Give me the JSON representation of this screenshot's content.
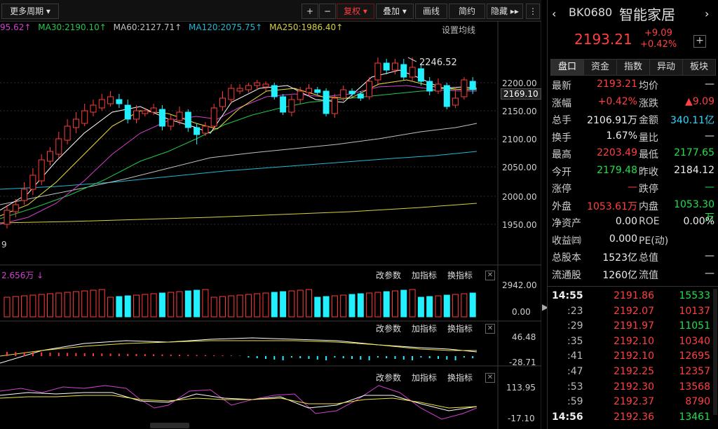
{
  "toolbar": {
    "period": "更多周期",
    "plus": "+",
    "minus": "−",
    "fuquan": "复权",
    "overlay": "叠加",
    "draw": "画线",
    "simple": "简约",
    "hide": "隐藏"
  },
  "ma": {
    "ma_first": "95.62",
    "ma30": "MA30:2190.10",
    "ma60": "MA60:2127.71",
    "ma120": "MA120:2075.75",
    "ma250": "MA250:1986.40",
    "settings": "设置均线"
  },
  "price_axis": [
    "2200.00",
    "2150.00",
    "2100.00",
    "2050.00",
    "2000.00",
    "1950.00"
  ],
  "current_price_tag": "2169.10",
  "high_annotation": "2246.52",
  "left_edge_label": "9",
  "volume": {
    "label": "2.656万",
    "params": "改参数",
    "add": "加指标",
    "swap": "换指标",
    "top": "2942.00",
    "bottom": "0.00"
  },
  "macd": {
    "params": "改参数",
    "add": "加指标",
    "swap": "换指标",
    "top": "46.48",
    "bottom": "-28.71"
  },
  "kdj": {
    "params": "改参数",
    "add": "加指标",
    "swap": "换指标",
    "top": "113.95",
    "bottom": "-17.10"
  },
  "quote": {
    "code": "BK0680",
    "name": "智能家居",
    "price": "2193.21",
    "change": "+9.09",
    "change_pct": "+0.42%"
  },
  "tabs": [
    "盘口",
    "资金",
    "指数",
    "异动",
    "板块"
  ],
  "stats": [
    {
      "k1": "最新",
      "v1": "2193.21",
      "c1": "red",
      "k2": "均价",
      "v2": "—",
      "c2": "white"
    },
    {
      "k1": "涨幅",
      "v1": "+0.42%",
      "c1": "red",
      "k2": "涨跌",
      "v2": "▲9.09",
      "c2": "red"
    },
    {
      "k1": "总手",
      "v1": "2106.91万",
      "c1": "white",
      "k2": "金额",
      "v2": "340.11亿",
      "c2": "cyan"
    },
    {
      "k1": "换手",
      "v1": "1.67%",
      "c1": "white",
      "k2": "量比",
      "v2": "—",
      "c2": "white"
    },
    {
      "k1": "最高",
      "v1": "2203.49",
      "c1": "red",
      "k2": "最低",
      "v2": "2177.65",
      "c2": "green"
    },
    {
      "k1": "今开",
      "v1": "2179.48",
      "c1": "green",
      "k2": "昨收",
      "v2": "2184.12",
      "c2": "white"
    },
    {
      "k1": "涨停",
      "v1": "—",
      "c1": "red",
      "k2": "跌停",
      "v2": "—",
      "c2": "green"
    },
    {
      "k1": "外盘",
      "v1": "1053.61万",
      "c1": "red",
      "k2": "内盘",
      "v2": "1053.30万",
      "c2": "green"
    },
    {
      "k1": "净资产",
      "v1": "0.00",
      "c1": "white",
      "k2": "ROE",
      "v2": "0.00%",
      "c2": "white"
    },
    {
      "k1": "收益㈣",
      "v1": "0.000",
      "c1": "white",
      "k2": "PE(动)",
      "v2": "",
      "c2": "white"
    },
    {
      "k1": "总股本",
      "v1": "1523亿",
      "c1": "white",
      "k2": "总值",
      "v2": "—",
      "c2": "white"
    },
    {
      "k1": "流通股",
      "v1": "1260亿",
      "c1": "white",
      "k2": "流值",
      "v2": "—",
      "c2": "white"
    }
  ],
  "ticks": [
    {
      "t": "14:55",
      "p": "2191.86",
      "v": "15533",
      "vc": "green"
    },
    {
      "t": ":23",
      "p": "2192.07",
      "v": "10137",
      "vc": "red"
    },
    {
      "t": ":29",
      "p": "2191.97",
      "v": "11051",
      "vc": "green"
    },
    {
      "t": ":35",
      "p": "2192.10",
      "v": "10340",
      "vc": "red"
    },
    {
      "t": ":41",
      "p": "2192.10",
      "v": "12695",
      "vc": "red"
    },
    {
      "t": ":47",
      "p": "2192.25",
      "v": "12357",
      "vc": "red"
    },
    {
      "t": ":53",
      "p": "2192.30",
      "v": "13568",
      "vc": "red"
    },
    {
      "t": ":59",
      "p": "2192.37",
      "v": "8790",
      "vc": "red"
    },
    {
      "t": "14:56",
      "p": "2192.36",
      "v": "13461",
      "vc": "green"
    }
  ],
  "colors": {
    "up": "#ff3b3b",
    "down": "#22f0ff",
    "ma5": "#ffffff",
    "ma10": "#f0e040",
    "ma20": "#d040d0",
    "ma30": "#22c84a",
    "ma60": "#c0c0c0",
    "ma120": "#20b8d8",
    "ma250": "#d8d040"
  }
}
